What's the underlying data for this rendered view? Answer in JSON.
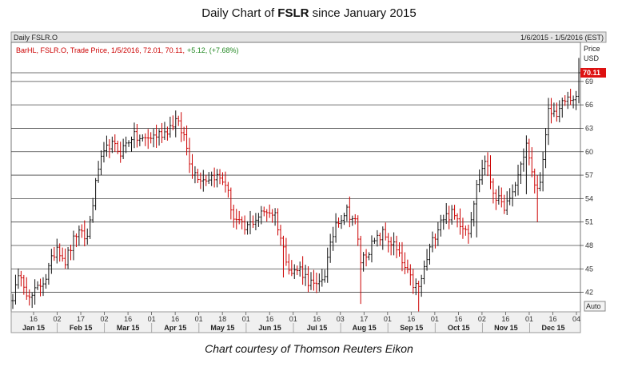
{
  "header": {
    "title_prefix": "Daily Chart of ",
    "title_ticker": "FSLR",
    "title_suffix": " since January 2015",
    "credit": "Chart courtesy of Thomson Reuters Eikon"
  },
  "panel": {
    "name": "Daily FSLR.O",
    "date_range": "1/6/2015 - 1/5/2016 (EST)",
    "info_main": "BarHL, FSLR.O, Trade Price, 1/5/2016, 72.01, 70.11,",
    "info_change": "+5.12, (+7.68%)",
    "price_label": "Price",
    "currency_label": "USD",
    "last_price_label": "70.11",
    "auto_label": "Auto",
    "up_color": "#111111",
    "down_color": "#cc0000",
    "last_price_color": "#dd1111",
    "change_color": "#228822"
  },
  "chart_data": {
    "type": "ohlc",
    "title": "Daily Chart of FSLR since January 2015",
    "ylabel": "Price USD",
    "ylim": [
      39.5,
      74
    ],
    "yticks": [
      42,
      45,
      48,
      51,
      54,
      57,
      60,
      63,
      66,
      69
    ],
    "grid": "horizontal",
    "last_price": 70.11,
    "x_day_ticks": [
      "16",
      "02",
      "17",
      "02",
      "16",
      "01",
      "16",
      "01",
      "18",
      "01",
      "16",
      "01",
      "16",
      "03",
      "17",
      "01",
      "16",
      "01",
      "16",
      "02",
      "16",
      "01",
      "16",
      "04"
    ],
    "x_month_labels": [
      "Jan 15",
      "Feb 15",
      "Mar 15",
      "Apr 15",
      "May 15",
      "Jun 15",
      "Jul 15",
      "Aug 15",
      "Sep 15",
      "Oct 15",
      "Nov 15",
      "Dec 15"
    ],
    "anchors": [
      [
        0,
        41.5
      ],
      [
        3,
        44.5
      ],
      [
        6,
        41.0
      ],
      [
        9,
        42.5
      ],
      [
        12,
        44.0
      ],
      [
        16,
        48.0
      ],
      [
        19,
        46.0
      ],
      [
        23,
        49.5
      ],
      [
        27,
        49.0
      ],
      [
        31,
        58.0
      ],
      [
        35,
        61.0
      ],
      [
        39,
        60.0
      ],
      [
        43,
        62.0
      ],
      [
        47,
        61.5
      ],
      [
        51,
        62.0
      ],
      [
        55,
        62.5
      ],
      [
        59,
        64.0
      ],
      [
        62,
        62.0
      ],
      [
        65,
        57.5
      ],
      [
        69,
        56.5
      ],
      [
        73,
        57.0
      ],
      [
        77,
        56.0
      ],
      [
        80,
        51.5
      ],
      [
        84,
        50.0
      ],
      [
        88,
        51.5
      ],
      [
        92,
        52.5
      ],
      [
        95,
        52.0
      ],
      [
        98,
        47.5
      ],
      [
        101,
        44.5
      ],
      [
        104,
        45.0
      ],
      [
        107,
        43.5
      ],
      [
        110,
        42.5
      ],
      [
        113,
        44.5
      ],
      [
        117,
        51.0
      ],
      [
        121,
        52.5
      ],
      [
        124,
        51.0
      ],
      [
        126,
        46.0
      ],
      [
        130,
        48.0
      ],
      [
        134,
        49.5
      ],
      [
        138,
        48.0
      ],
      [
        142,
        45.0
      ],
      [
        145,
        43.0
      ],
      [
        147,
        42.5
      ],
      [
        151,
        47.5
      ],
      [
        155,
        51.5
      ],
      [
        159,
        52.0
      ],
      [
        162,
        51.0
      ],
      [
        165,
        50.0
      ],
      [
        168,
        55.5
      ],
      [
        171,
        59.0
      ],
      [
        174,
        55.0
      ],
      [
        177,
        53.0
      ],
      [
        180,
        53.5
      ],
      [
        183,
        57.0
      ],
      [
        186,
        61.0
      ],
      [
        188,
        57.0
      ],
      [
        190,
        55.0
      ],
      [
        192,
        58.5
      ],
      [
        194,
        65.0
      ],
      [
        197,
        65.0
      ],
      [
        200,
        66.5
      ],
      [
        203,
        67.0
      ],
      [
        205,
        66.0
      ]
    ]
  }
}
